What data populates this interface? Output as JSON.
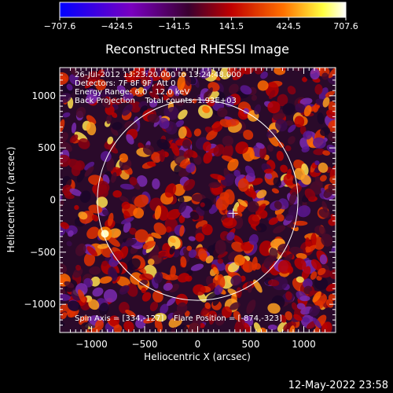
{
  "chart_data": {
    "type": "heatmap",
    "title": "Reconstructed RHESSI Image",
    "xlabel": "Heliocentric X (arcsec)",
    "ylabel": "Heliocentric Y (arcsec)",
    "xlim": [
      -1300,
      1300
    ],
    "ylim": [
      -1270,
      1270
    ],
    "xticks": [
      -1000,
      -500,
      0,
      500,
      1000
    ],
    "yticks": [
      -1000,
      -500,
      0,
      500,
      1000
    ],
    "xtick_labels": [
      "−1000",
      "−500",
      "0",
      "500",
      "1000"
    ],
    "ytick_labels": [
      "−1000",
      "−500",
      "0",
      "500",
      "1000"
    ],
    "colorbar": {
      "range": [
        -707.6,
        707.6
      ],
      "ticks": [
        -707.6,
        -424.5,
        -141.5,
        141.5,
        424.5,
        707.6
      ],
      "tick_labels": [
        "−707.6",
        "−424.5",
        "−141.5",
        "141.5",
        "424.5",
        "707.6"
      ],
      "colors": [
        "#0000ff",
        "#7a00c0",
        "#3a0030",
        "#c00000",
        "#ff7000",
        "#ffff40",
        "#ffffff"
      ]
    },
    "annotations": [
      "26-Jul-2012 13:23:20.000 to 13:24:48.000",
      "Detectors: 7F 8F 9F, Att 0",
      "Energy Range: 6.0 - 12.0 keV",
      "Back Projection    Total counts: 1.93E+03",
      "Spin Axis = [334,-127]    Flare Position = [-874,-323]"
    ],
    "spin_axis": [
      334,
      -127
    ],
    "flare_position": [
      -874,
      -323
    ],
    "solar_disk_radius": 945,
    "timestamp": "12-May-2022 23:58"
  }
}
